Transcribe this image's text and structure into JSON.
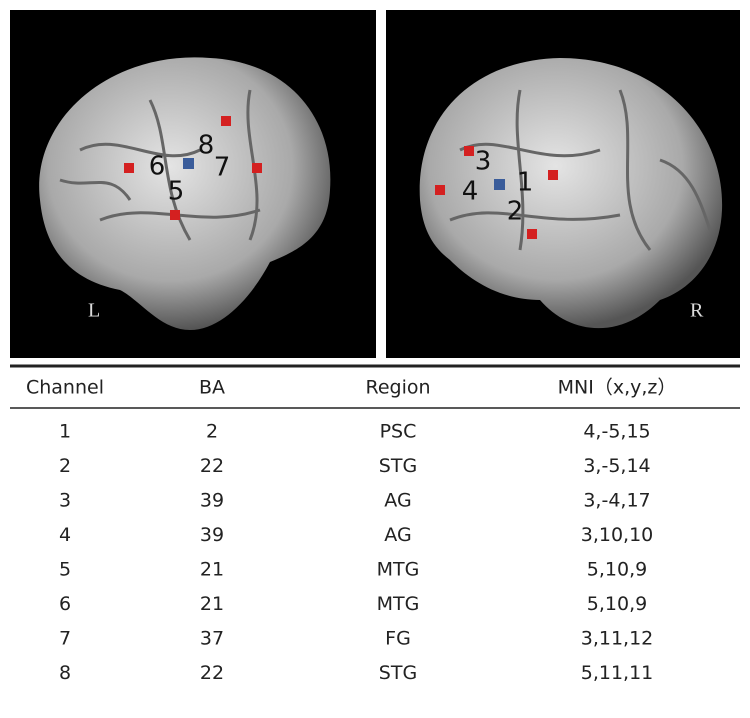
{
  "left_panel": {
    "side_label": "L",
    "channel_labels": [
      "6",
      "5",
      "8",
      "7"
    ]
  },
  "right_panel": {
    "side_label": "R",
    "channel_labels": [
      "3",
      "4",
      "1",
      "2"
    ]
  },
  "table": {
    "columns": [
      "Channel",
      "BA",
      "Region",
      "MNI（x,y,z）"
    ],
    "rows": [
      [
        1,
        2,
        "PSC",
        "4,-5,15"
      ],
      [
        2,
        22,
        "STG",
        "3,-5,14"
      ],
      [
        3,
        39,
        "AG",
        "3,-4,17"
      ],
      [
        4,
        39,
        "AG",
        "3,10,10"
      ],
      [
        5,
        21,
        "MTG",
        "5,10,9"
      ],
      [
        6,
        21,
        "MTG",
        "5,10,9"
      ],
      [
        7,
        37,
        "FG",
        "3,11,12"
      ],
      [
        8,
        22,
        "STG",
        "5,11,11"
      ]
    ]
  }
}
